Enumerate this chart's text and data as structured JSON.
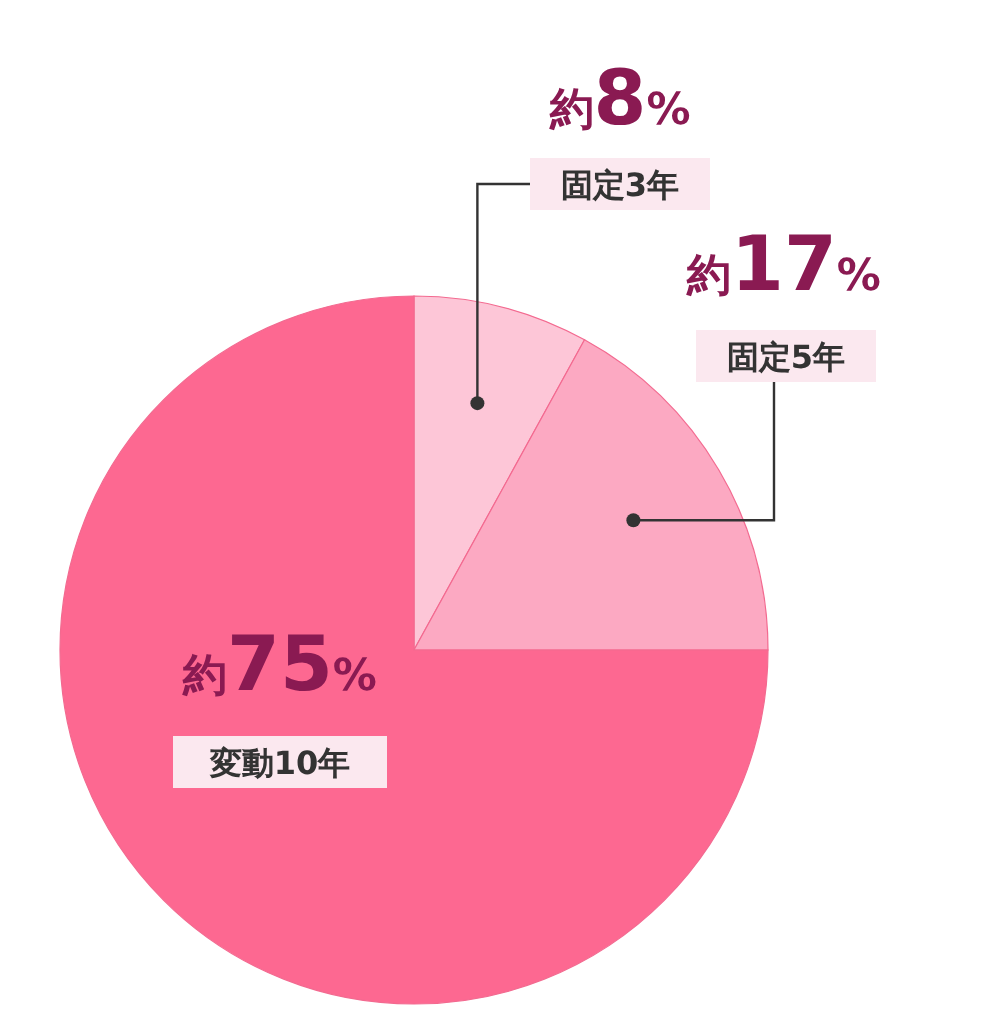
{
  "chart_data": {
    "type": "pie",
    "categories": [
      "固定3年",
      "固定5年",
      "変動10年"
    ],
    "values": [
      8,
      17,
      75
    ],
    "colors": [
      "#fdc6d7",
      "#fca9c2",
      "#fd6891"
    ],
    "value_labels": [
      "約8%",
      "約17%",
      "約75%"
    ]
  }
}
